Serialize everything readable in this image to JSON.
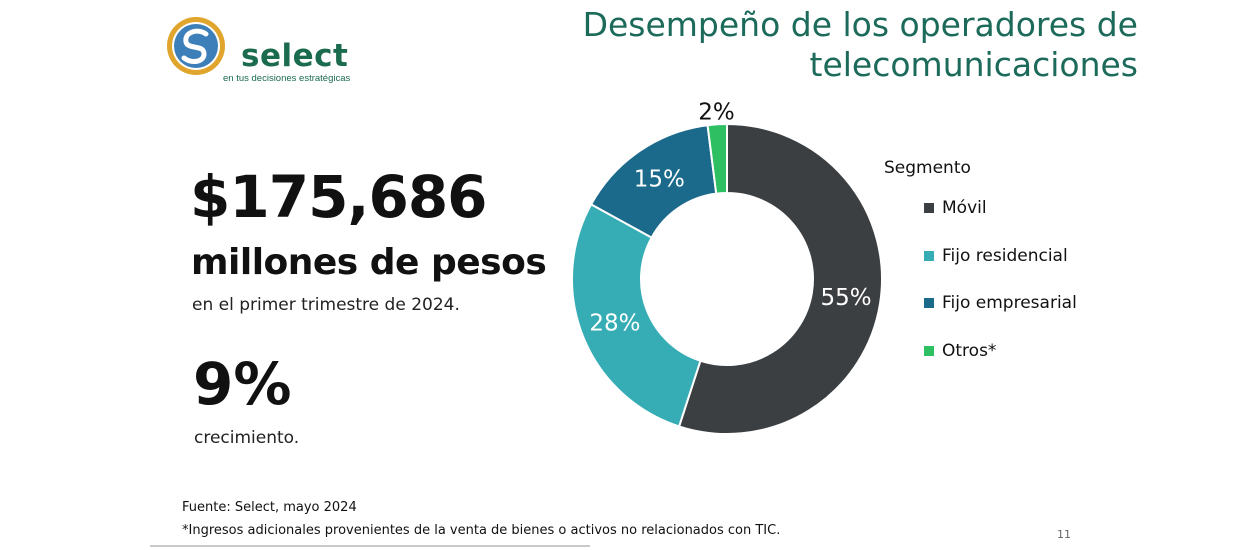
{
  "brand": {
    "name": "select",
    "tagline": "en tus decisiones estratégicas",
    "colors": {
      "ring": "#e0a52c",
      "disc": "#3d7fb8",
      "text": "#1b6b4e"
    }
  },
  "header": {
    "title": "Desempeño de los operadores de telecomunicaciones"
  },
  "kpis": {
    "amount": "$175,686",
    "unit": "millones de pesos",
    "period": "en el primer trimestre de 2024.",
    "growth": "9%",
    "growth_label": "crecimiento."
  },
  "chart_data": {
    "type": "pie",
    "variant": "donut",
    "legend_title": "Segmento",
    "legend_position": "right",
    "slices": [
      {
        "label": "Móvil",
        "value": 55,
        "display": "55%",
        "color": "#3b3f42"
      },
      {
        "label": "Fijo residencial",
        "value": 28,
        "display": "28%",
        "color": "#36adb5"
      },
      {
        "label": "Fijo empresarial",
        "value": 15,
        "display": "15%",
        "color": "#1b6a8c"
      },
      {
        "label": "Otros*",
        "value": 2,
        "display": "2%",
        "color": "#2dbf62"
      }
    ]
  },
  "footer": {
    "source": "Fuente: Select, mayo 2024",
    "footnote": "*Ingresos adicionales provenientes de la venta de bienes o activos no relacionados con TIC.",
    "page_number": "11"
  }
}
